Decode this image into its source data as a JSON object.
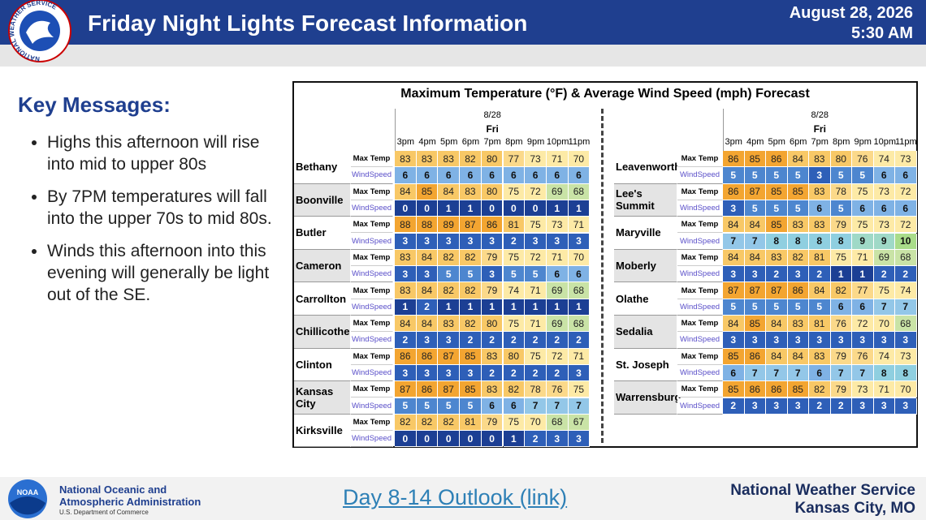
{
  "header": {
    "title": "Friday Night Lights Forecast Information",
    "date": "August 28, 2026",
    "time": "5:30 AM"
  },
  "logo_text": "NATIONAL WEATHER SERVICE",
  "key_messages": {
    "heading": "Key Messages:",
    "items": [
      "Highs this afternoon will rise into mid to upper 80s",
      "By 7PM temperatures will fall into the upper 70s to mid 80s.",
      "Winds this afternoon into this evening will generally be light out of the SE."
    ]
  },
  "forecast": {
    "title": "Maximum Temperature (°F) & Average Wind Speed (mph) Forecast",
    "date": "8/28",
    "day": "Fri",
    "hours": [
      "3pm",
      "4pm",
      "5pm",
      "6pm",
      "7pm",
      "8pm",
      "9pm",
      "10pm",
      "11pm"
    ],
    "temp_label": "Max Temp",
    "wind_label": "WindSpeed",
    "left": [
      {
        "city": "Bethany",
        "max_temp": [
          83,
          83,
          83,
          82,
          80,
          77,
          73,
          71,
          70
        ],
        "wind_speed": [
          6,
          6,
          6,
          6,
          6,
          6,
          6,
          6,
          6
        ]
      },
      {
        "city": "Boonville",
        "max_temp": [
          84,
          85,
          84,
          83,
          80,
          75,
          72,
          69,
          68
        ],
        "wind_speed": [
          0,
          0,
          1,
          1,
          0,
          0,
          0,
          1,
          1
        ]
      },
      {
        "city": "Butler",
        "max_temp": [
          88,
          88,
          89,
          87,
          86,
          81,
          75,
          73,
          71
        ],
        "wind_speed": [
          3,
          3,
          3,
          3,
          3,
          2,
          3,
          3,
          3
        ]
      },
      {
        "city": "Cameron",
        "max_temp": [
          83,
          84,
          82,
          82,
          79,
          75,
          72,
          71,
          70
        ],
        "wind_speed": [
          3,
          3,
          5,
          5,
          3,
          5,
          5,
          6,
          6
        ]
      },
      {
        "city": "Carrollton",
        "max_temp": [
          83,
          84,
          82,
          82,
          79,
          74,
          71,
          69,
          68
        ],
        "wind_speed": [
          1,
          2,
          1,
          1,
          1,
          1,
          1,
          1,
          1
        ]
      },
      {
        "city": "Chillicothe",
        "max_temp": [
          84,
          84,
          83,
          82,
          80,
          75,
          71,
          69,
          68
        ],
        "wind_speed": [
          2,
          3,
          3,
          2,
          2,
          2,
          2,
          2,
          2
        ]
      },
      {
        "city": "Clinton",
        "max_temp": [
          86,
          86,
          87,
          85,
          83,
          80,
          75,
          72,
          71
        ],
        "wind_speed": [
          3,
          3,
          3,
          3,
          2,
          2,
          2,
          2,
          3
        ]
      },
      {
        "city": "Kansas City",
        "max_temp": [
          87,
          86,
          87,
          85,
          83,
          82,
          78,
          76,
          75
        ],
        "wind_speed": [
          5,
          5,
          5,
          5,
          6,
          6,
          7,
          7,
          7
        ]
      },
      {
        "city": "Kirksville",
        "max_temp": [
          82,
          82,
          82,
          81,
          79,
          75,
          70,
          68,
          67
        ],
        "wind_speed": [
          0,
          0,
          0,
          0,
          0,
          1,
          2,
          3,
          3
        ]
      }
    ],
    "right": [
      {
        "city": "Leavenworth",
        "max_temp": [
          86,
          85,
          86,
          84,
          83,
          80,
          76,
          74,
          73
        ],
        "wind_speed": [
          5,
          5,
          5,
          5,
          3,
          5,
          5,
          6,
          6
        ]
      },
      {
        "city": "Lee's Summit",
        "max_temp": [
          86,
          87,
          85,
          85,
          83,
          78,
          75,
          73,
          72
        ],
        "wind_speed": [
          3,
          5,
          5,
          5,
          6,
          5,
          6,
          6,
          6
        ]
      },
      {
        "city": "Maryville",
        "max_temp": [
          84,
          84,
          85,
          83,
          83,
          79,
          75,
          73,
          72
        ],
        "wind_speed": [
          7,
          7,
          8,
          8,
          8,
          8,
          9,
          9,
          10
        ]
      },
      {
        "city": "Moberly",
        "max_temp": [
          84,
          84,
          83,
          82,
          81,
          75,
          71,
          69,
          68
        ],
        "wind_speed": [
          3,
          3,
          2,
          3,
          2,
          1,
          1,
          2,
          2
        ]
      },
      {
        "city": "Olathe",
        "max_temp": [
          87,
          87,
          87,
          86,
          84,
          82,
          77,
          75,
          74
        ],
        "wind_speed": [
          5,
          5,
          5,
          5,
          5,
          6,
          6,
          7,
          7
        ]
      },
      {
        "city": "Sedalia",
        "max_temp": [
          84,
          85,
          84,
          83,
          81,
          76,
          72,
          70,
          68
        ],
        "wind_speed": [
          3,
          3,
          3,
          3,
          3,
          3,
          3,
          3,
          3
        ]
      },
      {
        "city": "St. Joseph",
        "max_temp": [
          85,
          86,
          84,
          84,
          83,
          79,
          76,
          74,
          73
        ],
        "wind_speed": [
          6,
          7,
          7,
          7,
          6,
          7,
          7,
          8,
          8
        ]
      },
      {
        "city": "Warrensburg",
        "max_temp": [
          85,
          86,
          86,
          85,
          82,
          79,
          73,
          71,
          70
        ],
        "wind_speed": [
          2,
          3,
          3,
          3,
          2,
          2,
          3,
          3,
          3
        ]
      }
    ]
  },
  "footer": {
    "noaa_logo": "NOAA",
    "noaa_lines": [
      "National Oceanic and",
      "Atmospheric Administration",
      "U.S. Department of Commerce"
    ],
    "link": "Day 8-14 Outlook (link)",
    "nws": "National Weather Service",
    "office": "Kansas City, MO"
  }
}
